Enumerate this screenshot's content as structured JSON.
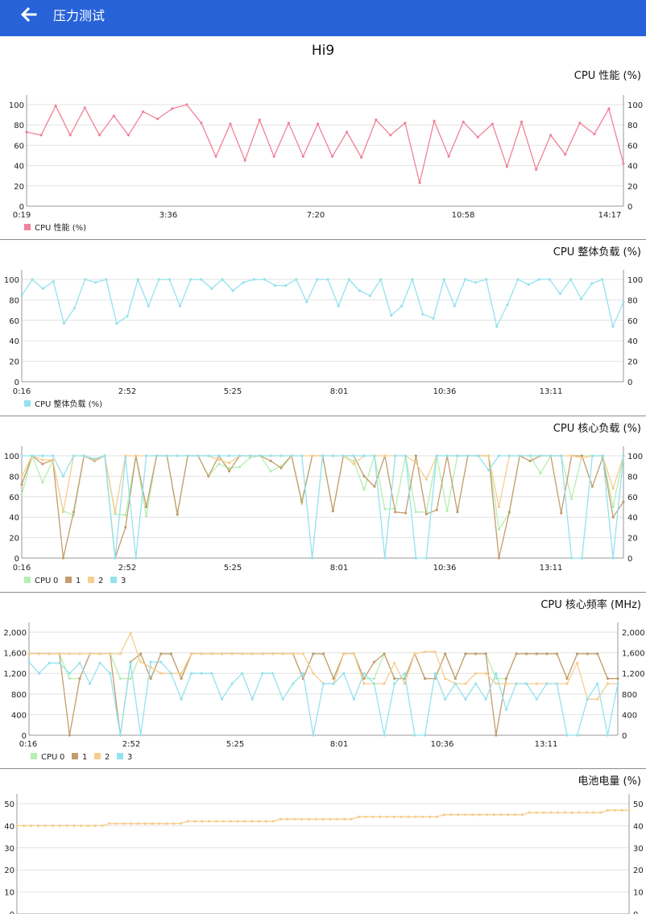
{
  "header": {
    "title": "压力测试"
  },
  "device_name": "Hi9",
  "colors": {
    "cpu0": "#b6eeb0",
    "cpu1": "#c39d6b",
    "cpu2": "#f7cd8d",
    "cpu3": "#94e2ee",
    "perf": "#f0829a",
    "battery": "#f7cd8d",
    "appbar": "#2862d9"
  },
  "chart_data": [
    {
      "type": "line",
      "title": "CPU 性能 (%)",
      "ylim": [
        0,
        100
      ],
      "yticks": [
        0,
        20,
        40,
        60,
        80,
        100
      ],
      "xtick_labels": [
        "0:19",
        "3:36",
        "7:20",
        "10:58",
        "14:17"
      ],
      "series": [
        {
          "name": "CPU 性能 (%)",
          "color": "#f0829a",
          "values": [
            73,
            70,
            99,
            70,
            97,
            70,
            89,
            70,
            93,
            86,
            96,
            100,
            82,
            49,
            81,
            45,
            85,
            49,
            82,
            49,
            81,
            49,
            73,
            48,
            85,
            70,
            82,
            23,
            84,
            49,
            83,
            68,
            81,
            39,
            83,
            36,
            70,
            51,
            82,
            71,
            96,
            42
          ]
        }
      ]
    },
    {
      "type": "line",
      "title": "CPU 整体负载 (%)",
      "ylim": [
        0,
        100
      ],
      "yticks": [
        0,
        20,
        40,
        60,
        80,
        100
      ],
      "xtick_labels": [
        "0:16",
        "2:52",
        "5:25",
        "8:01",
        "10:36",
        "13:11"
      ],
      "series": [
        {
          "name": "CPU 整体负载 (%)",
          "color": "#94e2ee",
          "values": [
            84,
            100,
            91,
            98,
            57,
            72,
            100,
            97,
            100,
            57,
            64,
            100,
            74,
            100,
            100,
            74,
            100,
            100,
            91,
            100,
            89,
            97,
            100,
            100,
            94,
            94,
            100,
            78,
            100,
            100,
            74,
            100,
            89,
            84,
            100,
            65,
            74,
            100,
            66,
            62,
            100,
            74,
            100,
            97,
            100,
            54,
            75,
            100,
            95,
            100,
            100,
            86,
            100,
            81,
            96,
            100,
            54,
            78
          ]
        }
      ]
    },
    {
      "type": "line",
      "title": "CPU 核心负载 (%)",
      "ylim": [
        0,
        100
      ],
      "yticks": [
        0,
        20,
        40,
        60,
        80,
        100
      ],
      "xtick_labels": [
        "0:16",
        "2:52",
        "5:25",
        "8:01",
        "10:36",
        "13:11"
      ],
      "legend_prefix": "CPU",
      "series": [
        {
          "name": "0",
          "color": "#b6eeb0",
          "values": [
            62,
            100,
            74,
            95,
            46,
            42,
            100,
            96,
            100,
            43,
            42,
            100,
            41,
            100,
            100,
            42,
            100,
            100,
            80,
            92,
            88,
            89,
            98,
            100,
            85,
            90,
            100,
            53,
            100,
            100,
            46,
            100,
            95,
            67,
            100,
            48,
            48,
            100,
            45,
            45,
            100,
            46,
            100,
            100,
            100,
            100,
            28,
            44,
            100,
            100,
            83,
            100,
            100,
            58,
            100,
            100,
            100,
            50,
            100
          ]
        },
        {
          "name": "1",
          "color": "#c39d6b",
          "values": [
            72,
            100,
            92,
            96,
            0,
            45,
            100,
            95,
            100,
            0,
            30,
            100,
            50,
            100,
            100,
            43,
            100,
            100,
            80,
            100,
            85,
            100,
            100,
            100,
            95,
            88,
            100,
            55,
            100,
            100,
            46,
            100,
            100,
            80,
            70,
            100,
            45,
            44,
            100,
            43,
            47,
            100,
            45,
            100,
            100,
            100,
            0,
            45,
            100,
            95,
            100,
            100,
            44,
            100,
            100,
            70,
            98,
            40,
            55
          ]
        },
        {
          "name": "2",
          "color": "#f7cd8d",
          "values": [
            80,
            100,
            96,
            96,
            45,
            100,
            100,
            96,
            100,
            45,
            100,
            100,
            100,
            100,
            100,
            100,
            100,
            100,
            100,
            96,
            93,
            100,
            100,
            100,
            100,
            100,
            100,
            100,
            100,
            100,
            100,
            100,
            92,
            100,
            100,
            100,
            100,
            100,
            93,
            77,
            100,
            100,
            100,
            100,
            100,
            100,
            50,
            100,
            100,
            100,
            100,
            100,
            100,
            100,
            98,
            100,
            100,
            68,
            100
          ]
        },
        {
          "name": "3",
          "color": "#94e2ee",
          "values": [
            100,
            100,
            100,
            100,
            80,
            100,
            100,
            97,
            100,
            0,
            98,
            0,
            100,
            100,
            100,
            100,
            100,
            100,
            100,
            100,
            100,
            100,
            100,
            100,
            100,
            100,
            100,
            100,
            0,
            100,
            100,
            100,
            100,
            100,
            100,
            0,
            100,
            100,
            0,
            0,
            100,
            100,
            100,
            100,
            100,
            86,
            100,
            100,
            100,
            100,
            100,
            100,
            100,
            0,
            0,
            100,
            100,
            0,
            100
          ]
        }
      ]
    },
    {
      "type": "line",
      "title": "CPU 核心频率 (MHz)",
      "ylim": [
        0,
        2000
      ],
      "yticks": [
        0,
        400,
        800,
        1200,
        1600,
        2000
      ],
      "ytick_labels": [
        "0",
        "400",
        "800",
        "1,200",
        "1,600",
        "2,000"
      ],
      "xtick_labels": [
        "0:16",
        "2:52",
        "5:25",
        "8:01",
        "10:36",
        "13:11"
      ],
      "legend_prefix": "CPU",
      "series": [
        {
          "name": "0",
          "color": "#b6eeb0",
          "values": [
            1580,
            1580,
            1580,
            1580,
            1100,
            1100,
            1580,
            1580,
            1580,
            1100,
            1100,
            1580,
            1100,
            1580,
            1580,
            1100,
            1580,
            1580,
            1580,
            1580,
            1580,
            1580,
            1580,
            1580,
            1580,
            1580,
            1580,
            1100,
            1580,
            1580,
            1100,
            1580,
            1580,
            1100,
            1100,
            1580,
            1100,
            1100,
            1580,
            1100,
            1100,
            1580,
            1100,
            1580,
            1580,
            1580,
            1100,
            1100,
            1580,
            1580,
            1580,
            1580,
            1580,
            1100,
            1580,
            1580,
            1580,
            1100,
            1100
          ]
        },
        {
          "name": "1",
          "color": "#c39d6b",
          "values": [
            1580,
            1580,
            1580,
            1580,
            0,
            1100,
            1580,
            1580,
            1580,
            0,
            1420,
            1580,
            1100,
            1580,
            1580,
            1100,
            1580,
            1580,
            1580,
            1580,
            1580,
            1580,
            1580,
            1580,
            1580,
            1580,
            1580,
            1100,
            1580,
            1580,
            1100,
            1580,
            1580,
            1100,
            1420,
            1580,
            1100,
            1100,
            1580,
            1100,
            1100,
            1580,
            1100,
            1580,
            1580,
            1580,
            0,
            1100,
            1580,
            1580,
            1580,
            1580,
            1580,
            1100,
            1580,
            1580,
            1580,
            1100,
            1100
          ]
        },
        {
          "name": "2",
          "color": "#f7cd8d",
          "values": [
            1580,
            1580,
            1580,
            1580,
            1580,
            1580,
            1580,
            1580,
            1580,
            1580,
            1980,
            1420,
            1320,
            1200,
            1200,
            1200,
            1580,
            1580,
            1580,
            1580,
            1580,
            1580,
            1580,
            1580,
            1580,
            1580,
            1580,
            1580,
            1200,
            1000,
            1000,
            1580,
            1580,
            1000,
            1000,
            1000,
            1400,
            1000,
            1580,
            1620,
            1620,
            1100,
            1000,
            1000,
            1200,
            1200,
            1000,
            1000,
            1000,
            1000,
            1000,
            1000,
            1000,
            1000,
            1400,
            700,
            700,
            1000,
            1000
          ]
        },
        {
          "name": "3",
          "color": "#94e2ee",
          "values": [
            1420,
            1200,
            1400,
            1400,
            1200,
            1400,
            1000,
            1400,
            1200,
            0,
            1400,
            0,
            1420,
            1420,
            1200,
            700,
            1200,
            1200,
            1200,
            700,
            1000,
            1200,
            700,
            1200,
            1200,
            700,
            1000,
            1200,
            0,
            1000,
            1000,
            1200,
            700,
            1200,
            1000,
            0,
            1000,
            1200,
            0,
            0,
            1200,
            700,
            1000,
            700,
            1000,
            700,
            1200,
            500,
            1000,
            1000,
            700,
            1000,
            1000,
            0,
            0,
            700,
            1000,
            0,
            1000
          ]
        }
      ]
    },
    {
      "type": "line",
      "title": "电池电量 (%)",
      "ylim": [
        0,
        50
      ],
      "yticks": [
        0,
        10,
        20,
        30,
        40,
        50
      ],
      "series": [
        {
          "name": "电池电量 (%)",
          "color": "#f7cd8d",
          "values": [
            40,
            40,
            40,
            40,
            40,
            40,
            40,
            40,
            40,
            40,
            40,
            40,
            40,
            41,
            41,
            41,
            41,
            41,
            41,
            41,
            41,
            41,
            41,
            41,
            42,
            42,
            42,
            42,
            42,
            42,
            42,
            42,
            42,
            42,
            42,
            42,
            42,
            43,
            43,
            43,
            43,
            43,
            43,
            43,
            43,
            43,
            43,
            43,
            44,
            44,
            44,
            44,
            44,
            44,
            44,
            44,
            44,
            44,
            44,
            44,
            45,
            45,
            45,
            45,
            45,
            45,
            45,
            45,
            45,
            45,
            45,
            45,
            46,
            46,
            46,
            46,
            46,
            46,
            46,
            46,
            46,
            46,
            46,
            47,
            47,
            47,
            47
          ]
        }
      ]
    }
  ]
}
